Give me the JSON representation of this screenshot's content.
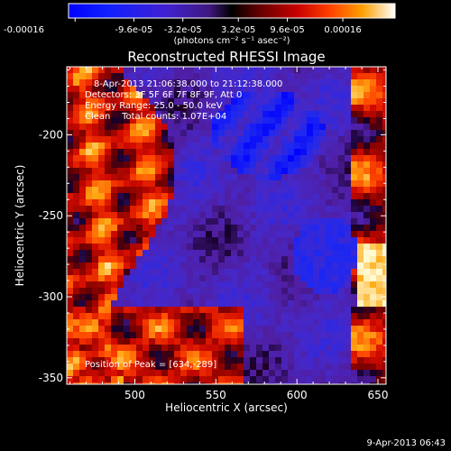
{
  "colorbar": {
    "tick_labels": [
      "-0.00016",
      "-9.6e-05",
      "-3.2e-05",
      "3.2e-05",
      "9.6e-05",
      "0.00016"
    ],
    "unit_label": "(photons cm⁻² s⁻¹ asec⁻²)",
    "min": -0.00016,
    "max": 0.00016
  },
  "plot": {
    "title": "Reconstructed RHESSI Image",
    "info_lines": [
      "8-Apr-2013 21:06:38.000 to 21:12:38.000",
      "Detectors: 3F 5F 6F 7F 8F 9F, Att 0",
      "Energy Range: 25.0 - 50.0 keV",
      "Clean    Total counts: 1.07E+04"
    ],
    "peak_label": "Position of Peak = [634,-289]",
    "xlabel": "Heliocentric X (arcsec)",
    "ylabel": "Heliocentric Y (arcsec)",
    "x_ticks": [
      "500",
      "550",
      "600",
      "650"
    ],
    "y_ticks": [
      "-200",
      "-250",
      "-300",
      "-350"
    ],
    "x_tick_values": [
      500,
      550,
      600,
      650
    ],
    "y_tick_values": [
      -200,
      -250,
      -300,
      -350
    ],
    "xlim": [
      458,
      655
    ],
    "ylim": [
      -354,
      -158
    ]
  },
  "footer": {
    "timestamp": "9-Apr-2013 06:43"
  }
}
